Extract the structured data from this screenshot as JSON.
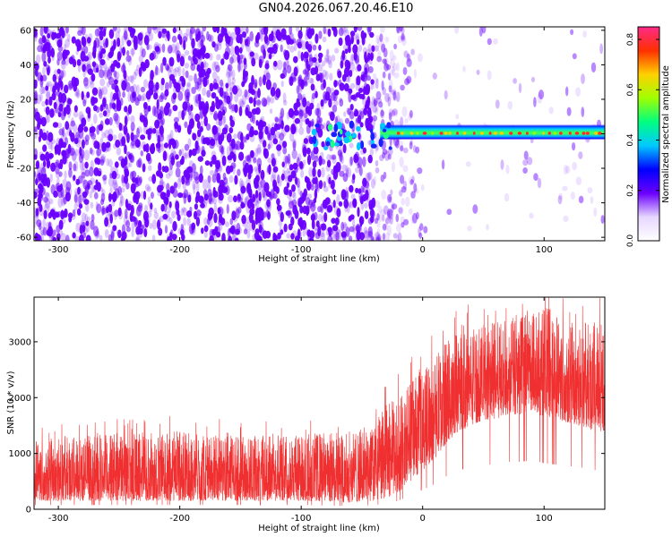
{
  "page_title": "GN04.2026.067.20.46.E10",
  "colors": {
    "snr_line": "#f03030",
    "speckle": "#6a00ff",
    "colormap": [
      "#ffffff",
      "#e6d6ff",
      "#6b00ff",
      "#0000ff",
      "#00c8ff",
      "#00ff80",
      "#a0ff00",
      "#ffd000",
      "#ff3000",
      "#ff2a88"
    ]
  },
  "chart_data": [
    {
      "type": "heatmap",
      "xlabel": "Height of straight line (km)",
      "ylabel": "Frequency (Hz)",
      "colorbar_label": "Normalized spectral amplitude",
      "xlim": [
        -320,
        150
      ],
      "ylim": [
        -62,
        62
      ],
      "xticks": [
        -300,
        -200,
        -100,
        0,
        100
      ],
      "yticks": [
        -60,
        -40,
        -20,
        0,
        20,
        40,
        60
      ],
      "colorbar_range": [
        0.0,
        0.85
      ],
      "colorbar_ticks": [
        0.0,
        0.2,
        0.4,
        0.6,
        0.8
      ],
      "features": {
        "noise_region_x": [
          -320,
          -40
        ],
        "fade_region_x": [
          -40,
          0
        ],
        "signal_band_x": [
          -90,
          150
        ],
        "signal_band_freq_hz": [
          -2,
          4
        ],
        "band_peak_amplitude": 0.8,
        "noise_amplitude": 0.12
      }
    },
    {
      "type": "line",
      "xlabel": "Height of straight line (km)",
      "ylabel": "SNR (10 * v/v)",
      "xlim": [
        -320,
        150
      ],
      "ylim": [
        0,
        3800
      ],
      "xticks": [
        -300,
        -200,
        -100,
        0,
        100
      ],
      "yticks": [
        0,
        1000,
        2000,
        3000
      ],
      "series": [
        {
          "envelope_x": [
            -320,
            -250,
            -200,
            -150,
            -100,
            -60,
            -40,
            -30,
            -20,
            -10,
            0,
            10,
            20,
            30,
            40,
            50,
            60,
            70,
            80,
            90,
            100,
            110,
            120,
            130,
            140,
            150
          ],
          "envelope_low": [
            150,
            150,
            150,
            150,
            150,
            120,
            150,
            200,
            300,
            500,
            700,
            900,
            1200,
            1400,
            1500,
            1600,
            1600,
            1700,
            1700,
            1750,
            1650,
            1600,
            1550,
            1500,
            1400,
            1400
          ],
          "envelope_high": [
            1300,
            1350,
            1400,
            1300,
            1350,
            1400,
            1500,
            1900,
            2000,
            2300,
            2500,
            2800,
            3000,
            3200,
            3300,
            3300,
            3350,
            3400,
            3500,
            3600,
            3700,
            3600,
            3450,
            3300,
            3400,
            3500
          ]
        }
      ]
    }
  ]
}
